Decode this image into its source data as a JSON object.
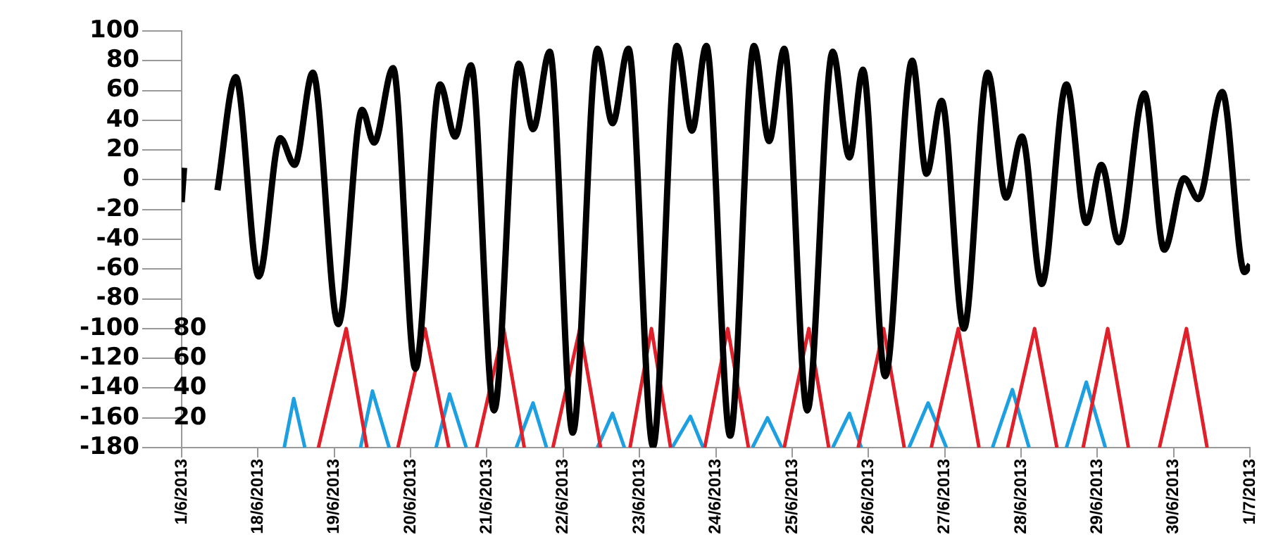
{
  "chart_data": {
    "type": "line",
    "xlim": [
      "2013-06-17",
      "2013-07-01"
    ],
    "xticks": [
      {
        "value": "2013-06-17",
        "label": "1/6/2013"
      },
      {
        "value": "2013-06-18",
        "label": "18/6/2013"
      },
      {
        "value": "2013-06-19",
        "label": "19/6/2013"
      },
      {
        "value": "2013-06-20",
        "label": "20/6/2013"
      },
      {
        "value": "2013-06-21",
        "label": "21/6/2013"
      },
      {
        "value": "2013-06-22",
        "label": "22/6/2013"
      },
      {
        "value": "2013-06-23",
        "label": "23/6/2013"
      },
      {
        "value": "2013-06-24",
        "label": "24/6/2013"
      },
      {
        "value": "2013-06-25",
        "label": "25/6/2013"
      },
      {
        "value": "2013-06-26",
        "label": "26/6/2013"
      },
      {
        "value": "2013-06-27",
        "label": "27/6/2013"
      },
      {
        "value": "2013-06-28",
        "label": "28/6/2013"
      },
      {
        "value": "2013-06-29",
        "label": "29/6/2013"
      },
      {
        "value": "2013-06-30",
        "label": "30/6/2013"
      },
      {
        "value": "2013-07-01",
        "label": "1/7/2013"
      }
    ],
    "ylim": [
      -180,
      100
    ],
    "yticks": [
      -180,
      -160,
      -140,
      -120,
      -100,
      -80,
      -60,
      -40,
      -20,
      0,
      20,
      40,
      60,
      80,
      100
    ],
    "y2lim": [
      0,
      280
    ],
    "y2ticks": [
      20,
      40,
      60,
      80
    ],
    "grid": false,
    "legend": false,
    "marker": "none",
    "line_style": "solid",
    "ref_lines": [
      {
        "axis": "y",
        "value": 0,
        "color": "#8c8c8c"
      }
    ],
    "series": [
      {
        "color": "#000000",
        "x": [
          "2013-06-17T00:00",
          "2013-06-17T00:45",
          "2013-06-17T06:00",
          "2013-06-17T11:15",
          "2013-06-17T17:00",
          "2013-06-18T00:15",
          "2013-06-18T07:00",
          "2013-06-18T11:30",
          "2013-06-18T17:15",
          "2013-06-19T01:15",
          "2013-06-19T08:45",
          "2013-06-19T12:30",
          "2013-06-19T18:30",
          "2013-06-20T01:30",
          "2013-06-20T09:15",
          "2013-06-20T14:00",
          "2013-06-20T19:00",
          "2013-06-21T02:15",
          "2013-06-21T10:00",
          "2013-06-21T14:30",
          "2013-06-21T19:45",
          "2013-06-22T03:00",
          "2013-06-22T10:45",
          "2013-06-22T15:30",
          "2013-06-22T20:30",
          "2013-06-23T04:15",
          "2013-06-23T11:45",
          "2013-06-23T16:30",
          "2013-06-23T21:00",
          "2013-06-24T04:30",
          "2013-06-24T12:00",
          "2013-06-24T16:45",
          "2013-06-24T21:30",
          "2013-06-25T04:45",
          "2013-06-25T12:45",
          "2013-06-25T18:00",
          "2013-06-25T22:15",
          "2013-06-26T05:15",
          "2013-06-26T13:45",
          "2013-06-26T18:15",
          "2013-06-26T23:00",
          "2013-06-27T06:00",
          "2013-06-27T13:30",
          "2013-06-27T19:15",
          "2013-06-28T00:15",
          "2013-06-28T06:30",
          "2013-06-28T14:15",
          "2013-06-28T20:30",
          "2013-06-29T01:15",
          "2013-06-29T06:45",
          "2013-06-29T14:45",
          "2013-06-29T21:00",
          "2013-06-30T03:15",
          "2013-06-30T07:45",
          "2013-06-30T15:15",
          "2013-06-30T22:15",
          "2013-07-01T00:00"
        ],
        "values": [
          -15,
          8,
          null,
          -7,
          69,
          -65,
          28,
          10,
          72,
          -97,
          47,
          25,
          75,
          -127,
          64,
          29,
          77,
          -155,
          78,
          34,
          86,
          -170,
          88,
          38,
          88,
          -179,
          90,
          33,
          90,
          -172,
          90,
          26,
          88,
          -155,
          86,
          15,
          74,
          -132,
          80,
          4,
          53,
          -100,
          72,
          -12,
          29,
          -70,
          64,
          -29,
          10,
          -42,
          58,
          -47,
          1,
          -13,
          59,
          -62,
          -57
        ]
      },
      {
        "color": "#e0202a",
        "axis": "y2",
        "x": [
          "2013-06-18T19:00",
          "2013-06-19T03:45",
          "2013-06-19T10:15",
          "2013-06-19T14:30",
          "2013-06-19T20:00",
          "2013-06-20T04:30",
          "2013-06-20T12:00",
          "2013-06-20T16:45",
          "2013-06-20T20:45",
          "2013-06-21T05:15",
          "2013-06-21T11:45",
          "2013-06-21T16:45",
          "2013-06-21T20:45",
          "2013-06-22T05:15",
          "2013-06-22T11:45",
          "2013-06-22T16:45",
          "2013-06-22T21:00",
          "2013-06-23T03:45",
          "2013-06-23T09:45",
          "2013-06-23T14:30",
          "2013-06-23T20:30",
          "2013-06-24T03:45",
          "2013-06-24T10:15",
          "2013-06-24T16:45",
          "2013-06-24T21:30",
          "2013-06-25T05:15",
          "2013-06-25T11:30",
          "2013-06-25T16:45",
          "2013-06-25T20:45",
          "2013-06-26T04:45",
          "2013-06-26T11:15",
          "2013-06-26T14:30",
          "2013-06-26T19:45",
          "2013-06-27T04:15",
          "2013-06-27T10:45",
          "2013-06-27T14:30",
          "2013-06-27T19:45",
          "2013-06-28T04:15",
          "2013-06-28T11:15",
          "2013-06-28T14:30",
          "2013-06-28T19:30",
          "2013-06-29T03:15",
          "2013-06-29T09:45",
          "2013-06-29T14:30",
          "2013-06-29T19:30",
          "2013-06-30T04:00",
          "2013-06-30T10:30"
        ],
        "values": [
          0,
          80,
          0,
          null,
          0,
          80,
          0,
          null,
          0,
          80,
          0,
          null,
          0,
          80,
          0,
          null,
          0,
          80,
          0,
          null,
          0,
          80,
          0,
          null,
          0,
          80,
          0,
          null,
          0,
          80,
          0,
          null,
          0,
          80,
          0,
          null,
          0,
          80,
          0,
          null,
          0,
          80,
          0,
          null,
          0,
          80,
          0
        ]
      },
      {
        "color": "#1ea0e0",
        "axis": "y2",
        "x": [
          "2013-06-18T08:15",
          "2013-06-18T11:15",
          "2013-06-18T14:45",
          "2013-06-19T00:00",
          "2013-06-19T08:15",
          "2013-06-19T12:00",
          "2013-06-19T17:15",
          "2013-06-20T00:00",
          "2013-06-20T08:00",
          "2013-06-20T12:15",
          "2013-06-20T17:30",
          "2013-06-21T00:00",
          "2013-06-21T09:15",
          "2013-06-21T14:30",
          "2013-06-21T18:45",
          "2013-06-22T00:00",
          "2013-06-22T10:45",
          "2013-06-22T15:30",
          "2013-06-22T19:15",
          "2013-06-23T00:00",
          "2013-06-23T10:15",
          "2013-06-23T16:00",
          "2013-06-23T20:00",
          "2013-06-24T00:00",
          "2013-06-24T11:30",
          "2013-06-24T16:15",
          "2013-06-24T20:45",
          "2013-06-25T00:00",
          "2013-06-25T12:45",
          "2013-06-25T18:00",
          "2013-06-25T21:45",
          "2013-06-26T00:00",
          "2013-06-26T12:45",
          "2013-06-26T18:45",
          "2013-06-27T00:30",
          "2013-06-27T07:15",
          "2013-06-27T15:00",
          "2013-06-27T21:15",
          "2013-06-28T02:30",
          "2013-06-28T07:15",
          "2013-06-28T14:15",
          "2013-06-28T20:30",
          "2013-06-29T02:30"
        ],
        "values": [
          0,
          33,
          0,
          null,
          0,
          38,
          0,
          null,
          0,
          36,
          0,
          null,
          0,
          30,
          0,
          null,
          0,
          23,
          0,
          null,
          0,
          21,
          0,
          null,
          0,
          20,
          0,
          null,
          0,
          23,
          0,
          null,
          0,
          30,
          0,
          null,
          0,
          39,
          0,
          null,
          0,
          44,
          0
        ]
      }
    ]
  }
}
